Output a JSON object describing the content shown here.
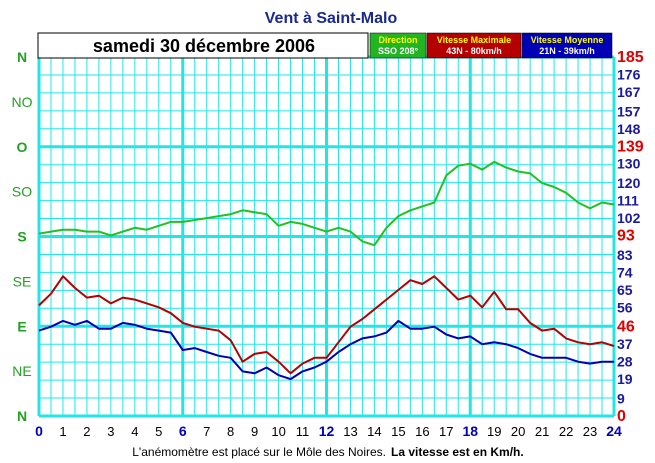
{
  "title": "Vent à Saint-Malo",
  "date": "samedi 30 décembre 2006",
  "legend": {
    "direction": {
      "title": "Direction",
      "value": "SSO 208°",
      "bg": "#22b422"
    },
    "max": {
      "title": "Vitesse Maximale",
      "value": "43N - 80km/h",
      "bg": "#b40000"
    },
    "avg": {
      "title": "Vitesse Moyenne",
      "value": "21N - 39km/h",
      "bg": "#0000b4"
    }
  },
  "footer": {
    "normal": "L'anémomètre est placé sur le Môle des Noires.",
    "bold": "La vitesse est en Km/h."
  },
  "colors": {
    "grid": "#22e6e6",
    "grid_major": "#22e6e6",
    "direction": "#22c022",
    "max": "#b40000",
    "avg": "#0000b4",
    "dir_label": "#22a022"
  },
  "chart_data": {
    "type": "line",
    "x_ticks": [
      "0",
      "1",
      "2",
      "3",
      "4",
      "5",
      "6",
      "7",
      "8",
      "9",
      "10",
      "11",
      "12",
      "13",
      "14",
      "15",
      "16",
      "17",
      "18",
      "19",
      "20",
      "21",
      "22",
      "23",
      "24"
    ],
    "x_major": [
      "0",
      "6",
      "12",
      "18",
      "24"
    ],
    "xlim": [
      0,
      24
    ],
    "ylim": [
      0,
      185
    ],
    "direction_axis": [
      {
        "label": "N",
        "value": 0
      },
      {
        "label": "NO",
        "value": 1
      },
      {
        "label": "O",
        "value": 2
      },
      {
        "label": "SO",
        "value": 3
      },
      {
        "label": "S",
        "value": 4
      },
      {
        "label": "SE",
        "value": 5
      },
      {
        "label": "E",
        "value": 6
      },
      {
        "label": "NE",
        "value": 7
      },
      {
        "label": "N",
        "value": 8
      }
    ],
    "direction_major": [
      "N",
      "O",
      "S",
      "E",
      "N"
    ],
    "speed_ticks": [
      {
        "label": "185",
        "value": 185,
        "major": true
      },
      {
        "label": "176",
        "value": 176
      },
      {
        "label": "167",
        "value": 167
      },
      {
        "label": "157",
        "value": 157
      },
      {
        "label": "148",
        "value": 148
      },
      {
        "label": "139",
        "value": 139,
        "major": true
      },
      {
        "label": "130",
        "value": 130
      },
      {
        "label": "120",
        "value": 120
      },
      {
        "label": "111",
        "value": 111
      },
      {
        "label": "102",
        "value": 102
      },
      {
        "label": "93",
        "value": 93,
        "major": true
      },
      {
        "label": "83",
        "value": 83
      },
      {
        "label": "74",
        "value": 74
      },
      {
        "label": "65",
        "value": 65
      },
      {
        "label": "56",
        "value": 56
      },
      {
        "label": "46",
        "value": 46,
        "major": true
      },
      {
        "label": "37",
        "value": 37
      },
      {
        "label": "28",
        "value": 28
      },
      {
        "label": "19",
        "value": 19
      },
      {
        "label": "9",
        "value": 9
      },
      {
        "label": "0",
        "value": 0,
        "major": true
      }
    ],
    "series": [
      {
        "name": "Direction",
        "color": "#22c022",
        "x": [
          0,
          0.5,
          1,
          1.5,
          2,
          2.5,
          3,
          3.5,
          4,
          4.5,
          5,
          5.5,
          6,
          6.5,
          7,
          7.5,
          8,
          8.5,
          9,
          9.5,
          10,
          10.5,
          11,
          11.5,
          12,
          12.5,
          13,
          13.5,
          14,
          14.5,
          15,
          15.5,
          16,
          16.5,
          17,
          17.5,
          18,
          18.5,
          19,
          19.5,
          20,
          20.5,
          21,
          21.5,
          22,
          22.5,
          23,
          23.5,
          24
        ],
        "values": [
          94,
          95,
          96,
          96,
          95,
          95,
          93,
          95,
          97,
          96,
          98,
          100,
          100,
          101,
          102,
          103,
          104,
          106,
          105,
          104,
          98,
          100,
          99,
          97,
          95,
          97,
          95,
          90,
          88,
          97,
          103,
          106,
          108,
          110,
          124,
          129,
          130,
          127,
          131,
          128,
          126,
          125,
          120,
          118,
          115,
          110,
          107,
          110,
          109
        ]
      },
      {
        "name": "Vitesse Maximale",
        "color": "#b40000",
        "x": [
          0,
          0.5,
          1,
          1.5,
          2,
          2.5,
          3,
          3.5,
          4,
          4.5,
          5,
          5.5,
          6,
          6.5,
          7,
          7.5,
          8,
          8.5,
          9,
          9.5,
          10,
          10.5,
          11,
          11.5,
          12,
          12.5,
          13,
          13.5,
          14,
          14.5,
          15,
          15.5,
          16,
          16.5,
          17,
          17.5,
          18,
          18.5,
          19,
          19.5,
          20,
          20.5,
          21,
          21.5,
          22,
          22.5,
          23,
          23.5,
          24
        ],
        "values": [
          57,
          63,
          72,
          66,
          61,
          62,
          58,
          61,
          60,
          58,
          56,
          53,
          48,
          46,
          45,
          44,
          39,
          28,
          32,
          33,
          28,
          22,
          27,
          30,
          30,
          38,
          46,
          50,
          55,
          60,
          65,
          70,
          68,
          72,
          66,
          60,
          62,
          56,
          64,
          55,
          55,
          48,
          44,
          45,
          40,
          38,
          37,
          38,
          36
        ]
      },
      {
        "name": "Vitesse Moyenne",
        "color": "#0000b4",
        "x": [
          0,
          0.5,
          1,
          1.5,
          2,
          2.5,
          3,
          3.5,
          4,
          4.5,
          5,
          5.5,
          6,
          6.5,
          7,
          7.5,
          8,
          8.5,
          9,
          9.5,
          10,
          10.5,
          11,
          11.5,
          12,
          12.5,
          13,
          13.5,
          14,
          14.5,
          15,
          15.5,
          16,
          16.5,
          17,
          17.5,
          18,
          18.5,
          19,
          19.5,
          20,
          20.5,
          21,
          21.5,
          22,
          22.5,
          23,
          23.5,
          24
        ],
        "values": [
          44,
          46,
          49,
          47,
          49,
          45,
          45,
          48,
          47,
          45,
          44,
          43,
          34,
          35,
          33,
          31,
          30,
          23,
          22,
          25,
          21,
          19,
          23,
          25,
          28,
          33,
          37,
          40,
          41,
          43,
          49,
          45,
          45,
          46,
          42,
          40,
          41,
          37,
          38,
          37,
          35,
          32,
          30,
          30,
          30,
          28,
          27,
          28,
          28
        ]
      }
    ]
  }
}
